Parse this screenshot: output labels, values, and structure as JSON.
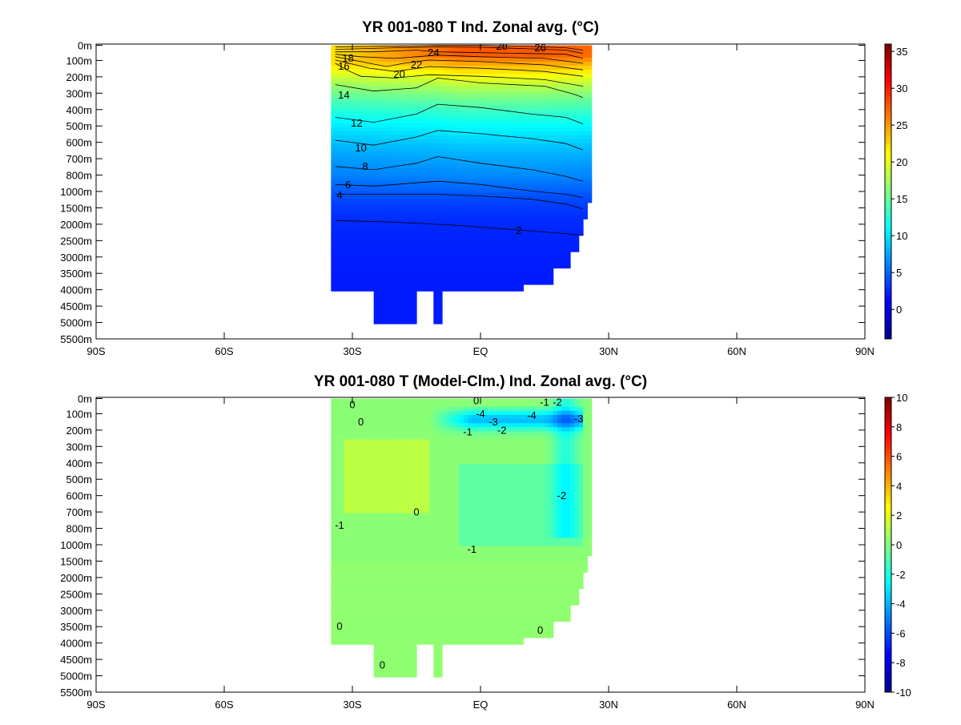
{
  "chart_data": [
    {
      "type": "heatmap",
      "title": "YR 001-080 T Ind. Zonal avg. (°C)",
      "x_ticks": [
        "90S",
        "60S",
        "30S",
        "EQ",
        "30N",
        "60N",
        "90N"
      ],
      "x_tick_values": [
        -90,
        -60,
        -30,
        0,
        30,
        60,
        90
      ],
      "xlim": [
        -90,
        90
      ],
      "y_ticks": [
        "0m",
        "100m",
        "200m",
        "300m",
        "400m",
        "500m",
        "600m",
        "700m",
        "800m",
        "1000m",
        "1500m",
        "2000m",
        "2500m",
        "3000m",
        "3500m",
        "4000m",
        "4500m",
        "5000m",
        "5500m"
      ],
      "y_tick_values": [
        0,
        100,
        200,
        300,
        400,
        500,
        600,
        700,
        800,
        1000,
        1500,
        2000,
        2500,
        3000,
        3500,
        4000,
        4500,
        5000,
        5500
      ],
      "colorbar": {
        "ticks": [
          "35",
          "30",
          "25",
          "20",
          "15",
          "10",
          "5",
          "0"
        ],
        "tick_values": [
          35,
          30,
          25,
          20,
          15,
          10,
          5,
          0
        ],
        "range": [
          -4,
          36
        ]
      },
      "data_extent": {
        "lat_min": -35,
        "lat_max": 25,
        "max_depth": 5000
      },
      "contours": [
        {
          "level": 28,
          "depth_at": [
            [
              -34,
              10
            ],
            [
              -20,
              5
            ],
            [
              -10,
              0
            ],
            [
              0,
              0
            ],
            [
              10,
              5
            ],
            [
              20,
              15
            ],
            [
              24,
              30
            ]
          ],
          "label": "28",
          "label_at": [
            5,
            2
          ]
        },
        {
          "level": 26,
          "depth_at": [
            [
              -34,
              25
            ],
            [
              -20,
              15
            ],
            [
              -10,
              10
            ],
            [
              0,
              12
            ],
            [
              10,
              20
            ],
            [
              20,
              30
            ],
            [
              24,
              50
            ]
          ],
          "label": "26",
          "label_at": [
            14,
            4
          ]
        },
        {
          "level": 24,
          "depth_at": [
            [
              -34,
              40
            ],
            [
              -25,
              40
            ],
            [
              -15,
              30
            ],
            [
              -10,
              40
            ],
            [
              0,
              45
            ],
            [
              10,
              50
            ],
            [
              20,
              55
            ],
            [
              24,
              80
            ]
          ],
          "label": "24",
          "label_at": [
            -11,
            10
          ]
        },
        {
          "level": 22,
          "depth_at": [
            [
              -34,
              55
            ],
            [
              -28,
              70
            ],
            [
              -20,
              80
            ],
            [
              -15,
              70
            ],
            [
              -10,
              60
            ],
            [
              0,
              70
            ],
            [
              15,
              80
            ],
            [
              24,
              110
            ]
          ],
          "label": "22",
          "label_at": [
            -15,
            25
          ]
        },
        {
          "level": 20,
          "depth_at": [
            [
              -34,
              70
            ],
            [
              -28,
              100
            ],
            [
              -22,
              130
            ],
            [
              -18,
              110
            ],
            [
              -12,
              90
            ],
            [
              0,
              100
            ],
            [
              15,
              120
            ],
            [
              24,
              150
            ]
          ],
          "label": "20",
          "label_at": [
            -19,
            37
          ]
        },
        {
          "level": 18,
          "depth_at": [
            [
              -34,
              90
            ],
            [
              -30,
              115
            ],
            [
              -26,
              140
            ],
            [
              -20,
              160
            ],
            [
              -12,
              130
            ],
            [
              0,
              140
            ],
            [
              15,
              160
            ],
            [
              24,
              190
            ]
          ],
          "label": "18",
          "label_at": [
            -31,
            17
          ]
        },
        {
          "level": 16,
          "depth_at": [
            [
              -34,
              110
            ],
            [
              -31,
              155
            ],
            [
              -28,
              190
            ],
            [
              -20,
              200
            ],
            [
              -12,
              180
            ],
            [
              0,
              190
            ],
            [
              15,
              210
            ],
            [
              24,
              250
            ]
          ],
          "label": "16",
          "label_at": [
            -32,
            27
          ]
        },
        {
          "level": 14,
          "depth_at": [
            [
              -34,
              240
            ],
            [
              -25,
              280
            ],
            [
              -15,
              260
            ],
            [
              -10,
              200
            ],
            [
              0,
              230
            ],
            [
              15,
              250
            ],
            [
              22,
              300
            ],
            [
              24,
              320
            ]
          ],
          "label": "14",
          "label_at": [
            -32,
            63
          ]
        },
        {
          "level": 12,
          "depth_at": [
            [
              -34,
              440
            ],
            [
              -25,
              470
            ],
            [
              -15,
              420
            ],
            [
              -10,
              360
            ],
            [
              0,
              380
            ],
            [
              12,
              420
            ],
            [
              20,
              440
            ],
            [
              24,
              480
            ]
          ],
          "label": "12",
          "label_at": [
            -29,
            98
          ]
        },
        {
          "level": 10,
          "depth_at": [
            [
              -34,
              580
            ],
            [
              -25,
              610
            ],
            [
              -15,
              560
            ],
            [
              -10,
              520
            ],
            [
              0,
              540
            ],
            [
              12,
              570
            ],
            [
              20,
              600
            ],
            [
              24,
              640
            ]
          ],
          "label": "10",
          "label_at": [
            -28,
            129
          ]
        },
        {
          "level": 8,
          "depth_at": [
            [
              -34,
              740
            ],
            [
              -25,
              760
            ],
            [
              -15,
              720
            ],
            [
              -10,
              680
            ],
            [
              0,
              720
            ],
            [
              12,
              760
            ],
            [
              20,
              800
            ],
            [
              24,
              860
            ]
          ],
          "label": "8",
          "label_at": [
            -27,
            152
          ]
        },
        {
          "level": 6,
          "depth_at": [
            [
              -34,
              900
            ],
            [
              -25,
              920
            ],
            [
              -15,
              880
            ],
            [
              -10,
              860
            ],
            [
              0,
              900
            ],
            [
              12,
              980
            ],
            [
              20,
              1050
            ],
            [
              24,
              1150
            ]
          ],
          "label": "6",
          "label_at": [
            -31,
            175
          ]
        },
        {
          "level": 4,
          "depth_at": [
            [
              -34,
              1050
            ],
            [
              -25,
              1050
            ],
            [
              -10,
              1050
            ],
            [
              0,
              1100
            ],
            [
              12,
              1200
            ],
            [
              20,
              1350
            ],
            [
              24,
              1500
            ]
          ],
          "label": "4",
          "label_at": [
            -33,
            188
          ]
        },
        {
          "level": 2,
          "depth_at": [
            [
              -34,
              1850
            ],
            [
              -20,
              1900
            ],
            [
              -5,
              2000
            ],
            [
              10,
              2150
            ],
            [
              20,
              2250
            ],
            [
              24,
              2300
            ]
          ],
          "label": "2",
          "label_at": [
            9,
            232
          ]
        }
      ]
    },
    {
      "type": "heatmap",
      "title": "YR 001-080 T (Model-Clm.) Ind. Zonal avg. (°C)",
      "x_ticks": [
        "90S",
        "60S",
        "30S",
        "EQ",
        "30N",
        "60N",
        "90N"
      ],
      "x_tick_values": [
        -90,
        -60,
        -30,
        0,
        30,
        60,
        90
      ],
      "xlim": [
        -90,
        90
      ],
      "y_ticks": [
        "0m",
        "100m",
        "200m",
        "300m",
        "400m",
        "500m",
        "600m",
        "700m",
        "800m",
        "1000m",
        "1500m",
        "2000m",
        "2500m",
        "3000m",
        "3500m",
        "4000m",
        "4500m",
        "5000m",
        "5500m"
      ],
      "y_tick_values": [
        0,
        100,
        200,
        300,
        400,
        500,
        600,
        700,
        800,
        1000,
        1500,
        2000,
        2500,
        3000,
        3500,
        4000,
        4500,
        5000,
        5500
      ],
      "colorbar": {
        "ticks": [
          "10",
          "8",
          "6",
          "4",
          "2",
          "0",
          "-2",
          "-4",
          "-6",
          "-8",
          "-10"
        ],
        "tick_values": [
          10,
          8,
          6,
          4,
          2,
          0,
          -2,
          -4,
          -6,
          -8,
          -10
        ],
        "range": [
          -10,
          10
        ]
      },
      "data_extent": {
        "lat_min": -35,
        "lat_max": 25,
        "max_depth": 5000
      },
      "contour_labels": [
        {
          "text": "0",
          "lat": -30,
          "depth": 35
        },
        {
          "text": "0",
          "lat": -28,
          "depth": 140
        },
        {
          "text": "0",
          "lat": -15,
          "depth": 690
        },
        {
          "text": "0",
          "lat": -1,
          "depth": 10
        },
        {
          "text": "-1",
          "lat": -33,
          "depth": 770
        },
        {
          "text": "-1",
          "lat": -3,
          "depth": 200
        },
        {
          "text": "-1",
          "lat": -2,
          "depth": 1090
        },
        {
          "text": "-2",
          "lat": 5,
          "depth": 190
        },
        {
          "text": "-2",
          "lat": 18,
          "depth": 20
        },
        {
          "text": "-2",
          "lat": 19,
          "depth": 590
        },
        {
          "text": "-3",
          "lat": 3,
          "depth": 140
        },
        {
          "text": "-3",
          "lat": 23,
          "depth": 120
        },
        {
          "text": "-4",
          "lat": 0,
          "depth": 90
        },
        {
          "text": "-4",
          "lat": 12,
          "depth": 100
        },
        {
          "text": "-1",
          "lat": 15,
          "depth": 20
        },
        {
          "text": "0",
          "lat": 14,
          "depth": 3550
        },
        {
          "text": "0",
          "lat": -33,
          "depth": 3430
        },
        {
          "text": "0",
          "lat": -23,
          "depth": 4620
        }
      ]
    }
  ]
}
